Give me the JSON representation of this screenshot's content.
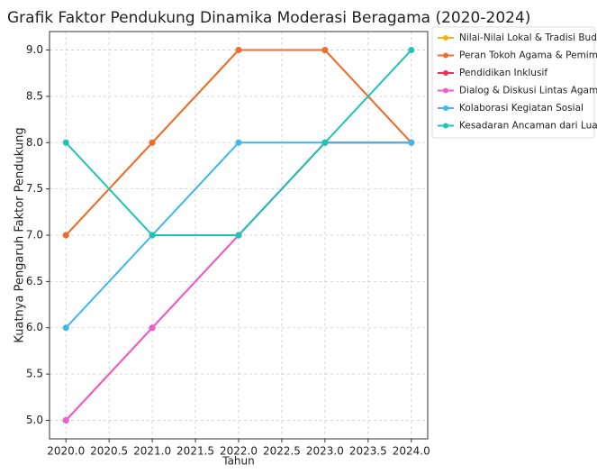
{
  "chart_data": {
    "type": "line",
    "title": "Grafik Faktor Pendukung Dinamika Moderasi Beragama (2020-2024)",
    "xlabel": "Tahun",
    "ylabel": "Kuatnya Pengaruh Faktor Pendukung",
    "x": [
      2020,
      2021,
      2022,
      2023,
      2024
    ],
    "series": [
      {
        "name": "Nilai-Nilai Lokal & Tradisi Budaya",
        "color": "#f7b114",
        "values": [
          7,
          8,
          9,
          9,
          8
        ]
      },
      {
        "name": "Peran Tokoh Agama & Pemimpin",
        "color": "#ee6c2f",
        "values": [
          7,
          8,
          9,
          9,
          8
        ]
      },
      {
        "name": "Pendidikan Inklusif",
        "color": "#e83452",
        "values": [
          5,
          6,
          7,
          8,
          8
        ]
      },
      {
        "name": "Dialog & Diskusi Lintas Agama",
        "color": "#ee5ec8",
        "values": [
          5,
          6,
          7,
          8,
          8
        ]
      },
      {
        "name": "Kolaborasi Kegiatan Sosial",
        "color": "#3fb7ee",
        "values": [
          6,
          7,
          8,
          8,
          8
        ]
      },
      {
        "name": "Kesadaran Ancaman dari Luar",
        "color": "#1ec4b6",
        "values": [
          8,
          7,
          7,
          8,
          9
        ]
      }
    ],
    "xlim": [
      2019.81,
      2024.19
    ],
    "xticks": [
      {
        "value": 2020,
        "label": "2020.0"
      },
      {
        "value": 2020.5,
        "label": "2020.5"
      },
      {
        "value": 2021,
        "label": "2021.0"
      },
      {
        "value": 2021.5,
        "label": "2021.5"
      },
      {
        "value": 2022,
        "label": "2022.0"
      },
      {
        "value": 2022.5,
        "label": "2022.5"
      },
      {
        "value": 2023,
        "label": "2023.0"
      },
      {
        "value": 2023.5,
        "label": "2023.5"
      },
      {
        "value": 2024,
        "label": "2024.0"
      }
    ],
    "ylim": [
      4.8,
      9.2
    ],
    "yticks": [
      {
        "value": 5,
        "label": "5.0"
      },
      5.5,
      {
        "value": 6,
        "label": "6.0"
      },
      6.5,
      {
        "value": 7,
        "label": "7.0"
      },
      7.5,
      {
        "value": 8,
        "label": "8.0"
      },
      8.5,
      {
        "value": 9,
        "label": "9.0"
      }
    ],
    "grid": true,
    "legend": "outside-upper-right"
  }
}
